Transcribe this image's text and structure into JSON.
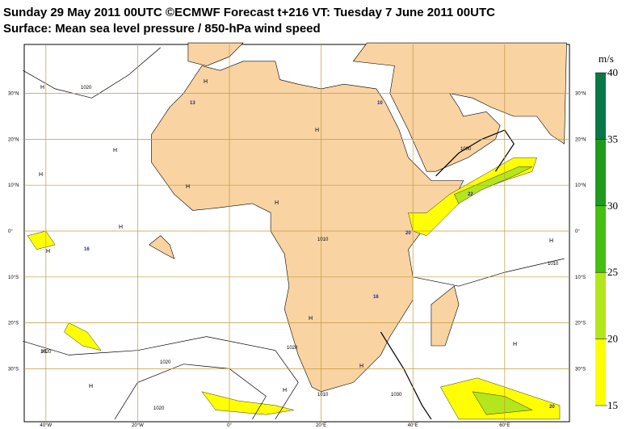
{
  "header": {
    "line1": "Sunday 29 May 2011 00UTC ©ECMWF Forecast t+216 VT: Tuesday 7 June 2011 00UTC",
    "line2": "Surface: Mean sea level pressure / 850-hPa wind speed"
  },
  "map": {
    "lon_ticks": [
      {
        "value": -40,
        "label": "40°W"
      },
      {
        "value": -20,
        "label": "20°W"
      },
      {
        "value": 0,
        "label": "0°"
      },
      {
        "value": 20,
        "label": "20°E"
      },
      {
        "value": 40,
        "label": "40°E"
      },
      {
        "value": 60,
        "label": "60°E"
      }
    ],
    "lat_ticks": [
      {
        "value": 30,
        "label": "30°N"
      },
      {
        "value": 20,
        "label": "20°N"
      },
      {
        "value": 10,
        "label": "10°N"
      },
      {
        "value": 0,
        "label": "0°"
      },
      {
        "value": -10,
        "label": "10°S"
      },
      {
        "value": -20,
        "label": "20°S"
      },
      {
        "value": -30,
        "label": "30°S"
      }
    ],
    "high_labels": [
      "H",
      "H",
      "H",
      "H",
      "H",
      "H",
      "H",
      "H",
      "H",
      "H",
      "H",
      "H",
      "H",
      "H",
      "H",
      "H"
    ],
    "isobar_labels": [
      "1020",
      "1010",
      "1000",
      "1010",
      "1020",
      "1020",
      "1020",
      "1020",
      "1010",
      "1030"
    ],
    "wind_labels": [
      "13",
      "10",
      "16",
      "22",
      "20",
      "16",
      "20"
    ]
  },
  "colorbar": {
    "unit": "m/s",
    "ticks": [
      15,
      20,
      25,
      30,
      35,
      40
    ],
    "colors": [
      "#ffff00",
      "#b4e61e",
      "#46be14",
      "#1e9b1e",
      "#0a7846"
    ]
  }
}
